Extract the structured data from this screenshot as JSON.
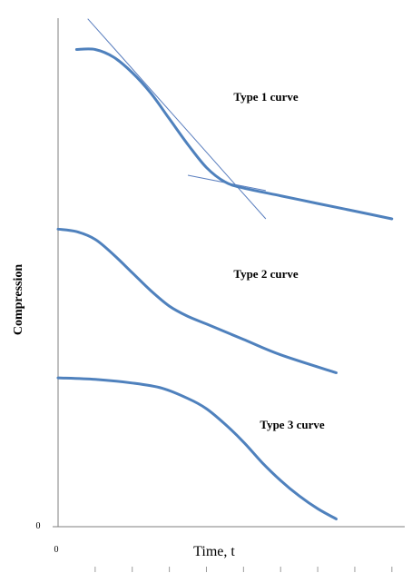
{
  "chart_data": {
    "type": "line",
    "xlabel": "Time, t",
    "ylabel": "Compression",
    "x_origin_label": "0",
    "y_origin_label": "0",
    "series_color": "#4f81bd",
    "tangent_color": "#5b7fbf",
    "annotations": [
      {
        "text": "Type 1 curve",
        "series": "type1"
      },
      {
        "text": "Type 2 curve",
        "series": "type2"
      },
      {
        "text": "Type 3 curve",
        "series": "type3"
      }
    ],
    "series": [
      {
        "id": "type1",
        "points": [
          [
            0.5,
            9.3
          ],
          [
            1.0,
            9.3
          ],
          [
            1.5,
            9.15
          ],
          [
            2.0,
            8.85
          ],
          [
            2.5,
            8.45
          ],
          [
            3.0,
            7.95
          ],
          [
            3.5,
            7.45
          ],
          [
            4.0,
            7.0
          ],
          [
            4.5,
            6.72
          ],
          [
            5.0,
            6.6
          ],
          [
            6.0,
            6.45
          ],
          [
            7.0,
            6.3
          ],
          [
            8.0,
            6.15
          ],
          [
            9.0,
            6.0
          ]
        ]
      },
      {
        "id": "type2",
        "points": [
          [
            0.0,
            5.8
          ],
          [
            0.5,
            5.75
          ],
          [
            1.0,
            5.6
          ],
          [
            1.5,
            5.3
          ],
          [
            2.0,
            4.95
          ],
          [
            2.5,
            4.6
          ],
          [
            3.0,
            4.3
          ],
          [
            3.5,
            4.1
          ],
          [
            4.0,
            3.95
          ],
          [
            4.5,
            3.8
          ],
          [
            5.0,
            3.65
          ],
          [
            6.0,
            3.35
          ],
          [
            7.5,
            3.0
          ]
        ]
      },
      {
        "id": "type3",
        "points": [
          [
            0.0,
            2.9
          ],
          [
            1.0,
            2.87
          ],
          [
            2.0,
            2.8
          ],
          [
            2.8,
            2.7
          ],
          [
            3.5,
            2.5
          ],
          [
            4.0,
            2.3
          ],
          [
            4.5,
            2.0
          ],
          [
            5.0,
            1.65
          ],
          [
            5.5,
            1.25
          ],
          [
            6.0,
            0.9
          ],
          [
            6.5,
            0.6
          ],
          [
            7.0,
            0.35
          ],
          [
            7.5,
            0.15
          ]
        ]
      }
    ],
    "tangents": [
      {
        "id": "tangent-early",
        "points": [
          [
            0.8,
            9.9
          ],
          [
            5.6,
            6.0
          ]
        ]
      },
      {
        "id": "tangent-late",
        "points": [
          [
            3.5,
            6.85
          ],
          [
            5.6,
            6.55
          ]
        ]
      }
    ],
    "xlim": [
      0,
      9.2
    ],
    "ylim": [
      0,
      10
    ],
    "x_ticks": [
      1,
      2,
      3,
      4,
      5,
      6,
      7,
      8,
      9
    ]
  }
}
